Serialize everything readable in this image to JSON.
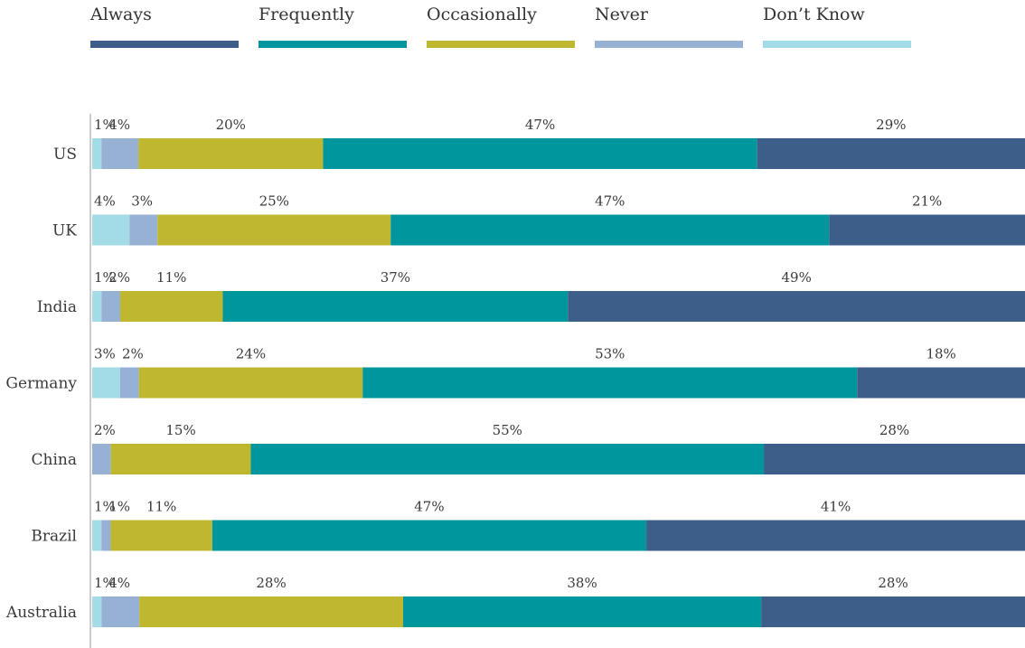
{
  "chart_data": {
    "type": "bar",
    "orientation": "horizontal",
    "stacked": true,
    "unit": "%",
    "categories": [
      "US",
      "UK",
      "India",
      "Germany",
      "China",
      "Brazil",
      "Australia"
    ],
    "stack_order": [
      "Don’t Know",
      "Never",
      "Occasionally",
      "Frequently",
      "Always"
    ],
    "series": [
      {
        "name": "Always",
        "color": "#3d5e89",
        "values": [
          29,
          21,
          49,
          18,
          28,
          41,
          28
        ]
      },
      {
        "name": "Frequently",
        "color": "#00969e",
        "values": [
          47,
          47,
          37,
          53,
          55,
          47,
          38
        ]
      },
      {
        "name": "Occasionally",
        "color": "#c0b731",
        "values": [
          20,
          25,
          11,
          24,
          15,
          11,
          28
        ]
      },
      {
        "name": "Never",
        "color": "#96b1d4",
        "values": [
          4,
          3,
          2,
          2,
          2,
          1,
          4
        ]
      },
      {
        "name": "Don’t Know",
        "color": "#a3dbe6",
        "values": [
          1,
          4,
          1,
          3,
          0,
          1,
          1
        ]
      }
    ],
    "legend_position": "top",
    "grid": false,
    "title": "",
    "xlabel": "",
    "ylabel": ""
  }
}
